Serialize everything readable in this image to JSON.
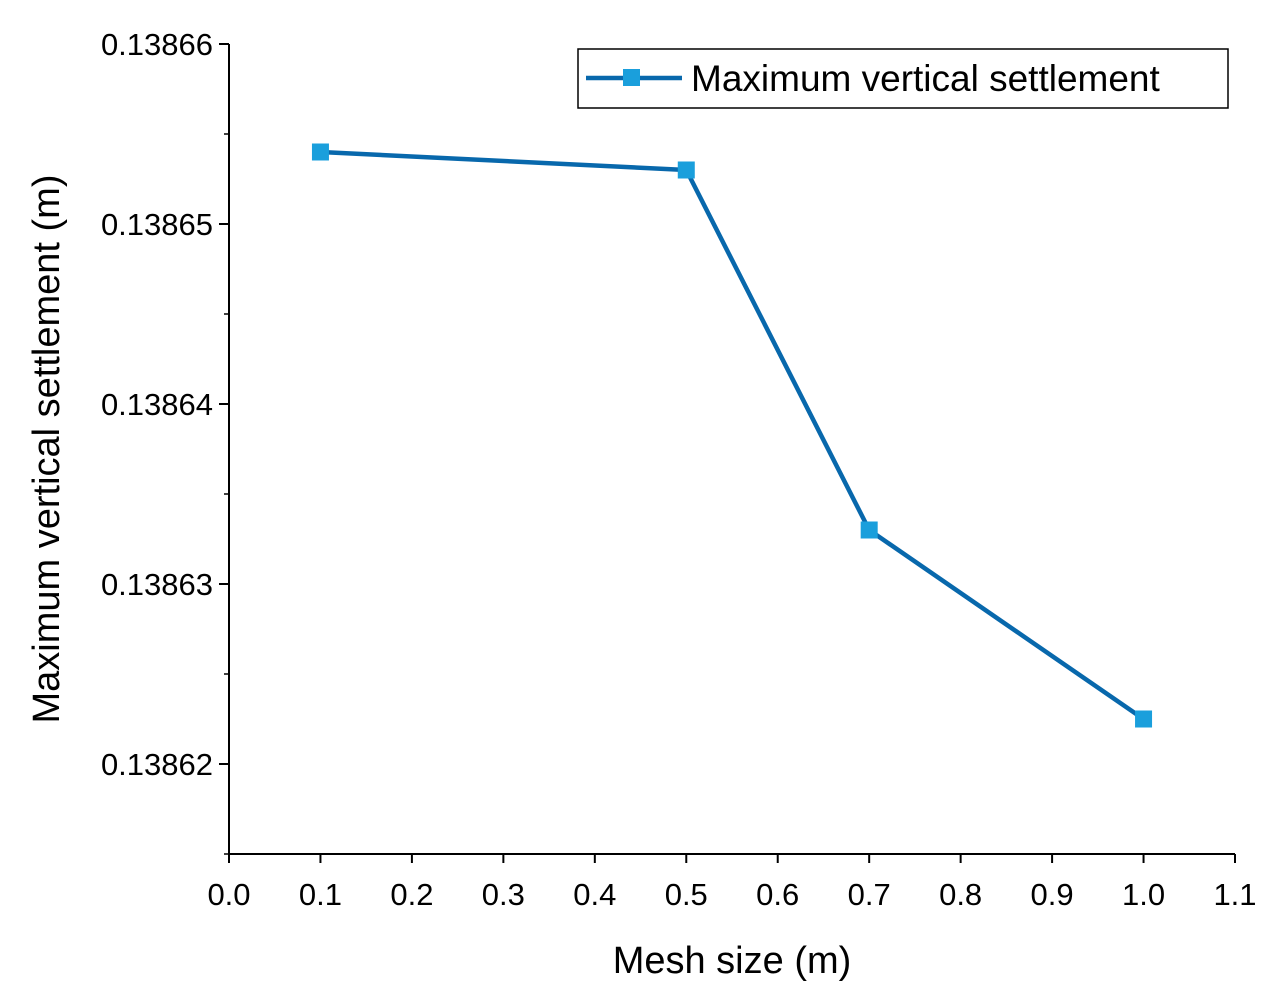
{
  "chart_data": {
    "type": "line",
    "title": "",
    "xlabel": "Mesh size (m)",
    "ylabel": "Maximum vertical settlement (m)",
    "xlim": [
      0.0,
      1.1
    ],
    "ylim": [
      0.138615,
      0.13866
    ],
    "x_ticks": [
      "0.0",
      "0.1",
      "0.2",
      "0.3",
      "0.4",
      "0.5",
      "0.6",
      "0.7",
      "0.8",
      "0.9",
      "1.0",
      "1.1"
    ],
    "y_ticks": [
      "0.13862",
      "0.13863",
      "0.13864",
      "0.13865",
      "0.13866"
    ],
    "grid": false,
    "legend_position": "top-right",
    "series": [
      {
        "name": "Maximum vertical settlement",
        "color": "#0868ac",
        "marker_color": "#1a9fdc",
        "marker": "square",
        "x": [
          0.1,
          0.5,
          0.7,
          1.0
        ],
        "y": [
          0.138654,
          0.138653,
          0.138633,
          0.1386225
        ]
      }
    ]
  }
}
